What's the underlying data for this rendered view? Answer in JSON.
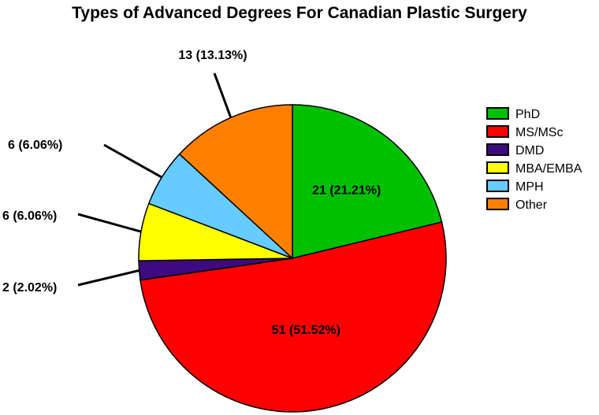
{
  "chart_data": {
    "type": "pie",
    "title": "Types of Advanced Degrees For Canadian Plastic Surgery",
    "legend_position": "right",
    "slices": [
      {
        "name": "PhD",
        "value": 21,
        "label": "21 (21.21%)",
        "color": "#00c000",
        "label_placement": "inside"
      },
      {
        "name": "MS/MSc",
        "value": 51,
        "label": "51 (51.52%)",
        "color": "#ff0000",
        "label_placement": "inside"
      },
      {
        "name": "DMD",
        "value": 2,
        "label": "2 (2.02%)",
        "color": "#3d0a80",
        "label_placement": "outside"
      },
      {
        "name": "MBA/EMBA",
        "value": 6,
        "label": "6 (6.06%)",
        "color": "#ffff00",
        "label_placement": "outside"
      },
      {
        "name": "MPH",
        "value": 6,
        "label": "6 (6.06%)",
        "color": "#66ccff",
        "label_placement": "outside"
      },
      {
        "name": "Other",
        "value": 13,
        "label": "13 (13.13%)",
        "color": "#ff8000",
        "label_placement": "outside"
      }
    ]
  }
}
